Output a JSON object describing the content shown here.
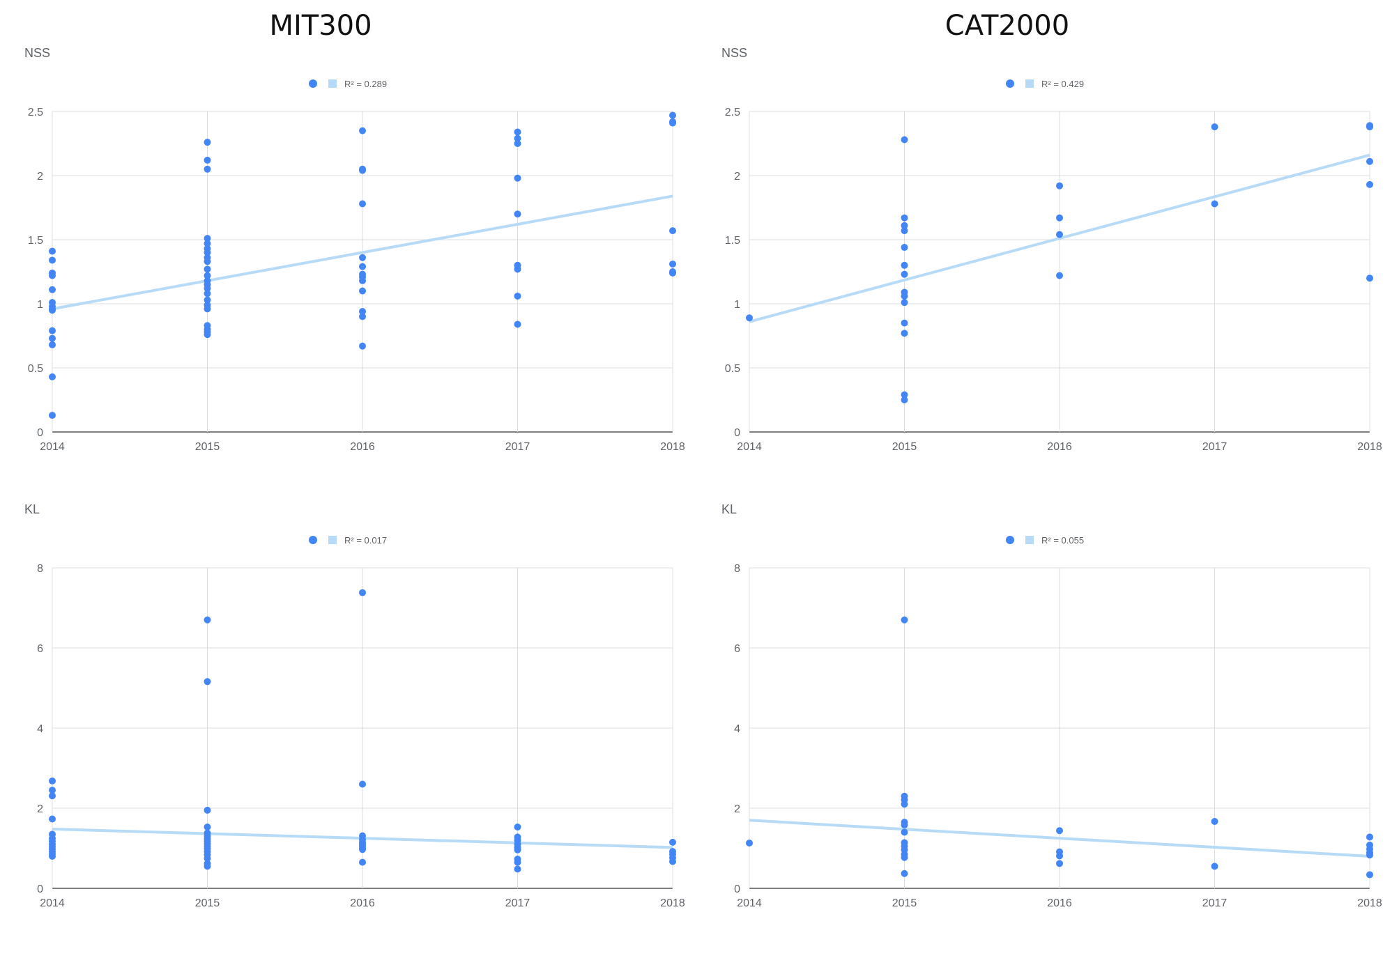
{
  "columns": [
    {
      "title": "MIT300"
    },
    {
      "title": "CAT2000"
    }
  ],
  "colors": {
    "point": "#4285f4",
    "trend": "#b7dbf7",
    "grid": "#dadce0",
    "axis": "#333333"
  },
  "chart_data": [
    {
      "type": "scatter",
      "dataset": "MIT300",
      "ylabel": "NSS",
      "legend": {
        "position": "top",
        "trend_label": "R² = 0.289"
      },
      "xlim": [
        2014,
        2018
      ],
      "ylim": [
        0,
        2.5
      ],
      "xticks": [
        2014,
        2015,
        2016,
        2017,
        2018
      ],
      "yticks": [
        "0",
        "0.5",
        "1",
        "1.5",
        "2",
        "2.5"
      ],
      "grid": true,
      "trendline": {
        "x": [
          2014,
          2018
        ],
        "y": [
          0.96,
          1.84
        ]
      },
      "points": [
        [
          2014,
          1.41
        ],
        [
          2014,
          1.34
        ],
        [
          2014,
          1.24
        ],
        [
          2014,
          1.22
        ],
        [
          2014,
          1.11
        ],
        [
          2014,
          1.01
        ],
        [
          2014,
          0.98
        ],
        [
          2014,
          0.96
        ],
        [
          2014,
          0.95
        ],
        [
          2014,
          0.79
        ],
        [
          2014,
          0.73
        ],
        [
          2014,
          0.68
        ],
        [
          2014,
          0.43
        ],
        [
          2014,
          0.13
        ],
        [
          2015,
          2.26
        ],
        [
          2015,
          2.12
        ],
        [
          2015,
          2.05
        ],
        [
          2015,
          1.51
        ],
        [
          2015,
          1.47
        ],
        [
          2015,
          1.43
        ],
        [
          2015,
          1.4
        ],
        [
          2015,
          1.36
        ],
        [
          2015,
          1.33
        ],
        [
          2015,
          1.27
        ],
        [
          2015,
          1.22
        ],
        [
          2015,
          1.18
        ],
        [
          2015,
          1.15
        ],
        [
          2015,
          1.12
        ],
        [
          2015,
          1.08
        ],
        [
          2015,
          1.03
        ],
        [
          2015,
          0.99
        ],
        [
          2015,
          0.96
        ],
        [
          2015,
          0.83
        ],
        [
          2015,
          0.8
        ],
        [
          2015,
          0.78
        ],
        [
          2015,
          0.76
        ],
        [
          2016,
          2.35
        ],
        [
          2016,
          2.05
        ],
        [
          2016,
          2.04
        ],
        [
          2016,
          1.78
        ],
        [
          2016,
          1.36
        ],
        [
          2016,
          1.29
        ],
        [
          2016,
          1.23
        ],
        [
          2016,
          1.21
        ],
        [
          2016,
          1.18
        ],
        [
          2016,
          1.1
        ],
        [
          2016,
          0.94
        ],
        [
          2016,
          0.9
        ],
        [
          2016,
          0.67
        ],
        [
          2017,
          2.34
        ],
        [
          2017,
          2.29
        ],
        [
          2017,
          2.25
        ],
        [
          2017,
          1.98
        ],
        [
          2017,
          1.7
        ],
        [
          2017,
          1.3
        ],
        [
          2017,
          1.27
        ],
        [
          2017,
          1.06
        ],
        [
          2017,
          0.84
        ],
        [
          2018,
          2.47
        ],
        [
          2018,
          2.42
        ],
        [
          2018,
          2.41
        ],
        [
          2018,
          1.57
        ],
        [
          2018,
          1.31
        ],
        [
          2018,
          1.25
        ],
        [
          2018,
          1.24
        ]
      ]
    },
    {
      "type": "scatter",
      "dataset": "CAT2000",
      "ylabel": "NSS",
      "legend": {
        "position": "top",
        "trend_label": "R² = 0.429"
      },
      "xlim": [
        2014,
        2018
      ],
      "ylim": [
        0,
        2.5
      ],
      "xticks": [
        2014,
        2015,
        2016,
        2017,
        2018
      ],
      "yticks": [
        "0",
        "0.5",
        "1",
        "1.5",
        "2",
        "2.5"
      ],
      "grid": true,
      "trendline": {
        "x": [
          2014,
          2018
        ],
        "y": [
          0.86,
          2.16
        ]
      },
      "points": [
        [
          2014,
          0.89
        ],
        [
          2015,
          2.28
        ],
        [
          2015,
          1.67
        ],
        [
          2015,
          1.61
        ],
        [
          2015,
          1.57
        ],
        [
          2015,
          1.44
        ],
        [
          2015,
          1.3
        ],
        [
          2015,
          1.23
        ],
        [
          2015,
          1.09
        ],
        [
          2015,
          1.06
        ],
        [
          2015,
          1.01
        ],
        [
          2015,
          0.85
        ],
        [
          2015,
          0.77
        ],
        [
          2015,
          0.29
        ],
        [
          2015,
          0.25
        ],
        [
          2016,
          1.92
        ],
        [
          2016,
          1.67
        ],
        [
          2016,
          1.54
        ],
        [
          2016,
          1.22
        ],
        [
          2017,
          2.38
        ],
        [
          2017,
          1.78
        ],
        [
          2018,
          2.39
        ],
        [
          2018,
          2.38
        ],
        [
          2018,
          2.11
        ],
        [
          2018,
          1.93
        ],
        [
          2018,
          1.2
        ]
      ]
    },
    {
      "type": "scatter",
      "dataset": "MIT300",
      "ylabel": "KL",
      "legend": {
        "position": "top",
        "trend_label": "R² = 0.017"
      },
      "xlim": [
        2014,
        2018
      ],
      "ylim": [
        0,
        8
      ],
      "xticks": [
        2014,
        2015,
        2016,
        2017,
        2018
      ],
      "yticks": [
        "0",
        "2",
        "4",
        "6",
        "8"
      ],
      "grid": true,
      "trendline": {
        "x": [
          2014,
          2018
        ],
        "y": [
          1.48,
          1.02
        ]
      },
      "points": [
        [
          2014,
          2.68
        ],
        [
          2014,
          2.45
        ],
        [
          2014,
          2.31
        ],
        [
          2014,
          1.73
        ],
        [
          2014,
          1.35
        ],
        [
          2014,
          1.25
        ],
        [
          2014,
          1.18
        ],
        [
          2014,
          1.1
        ],
        [
          2014,
          1.04
        ],
        [
          2014,
          0.98
        ],
        [
          2014,
          0.92
        ],
        [
          2014,
          0.86
        ],
        [
          2014,
          0.8
        ],
        [
          2015,
          6.7
        ],
        [
          2015,
          5.16
        ],
        [
          2015,
          1.95
        ],
        [
          2015,
          1.53
        ],
        [
          2015,
          1.38
        ],
        [
          2015,
          1.3
        ],
        [
          2015,
          1.23
        ],
        [
          2015,
          1.17
        ],
        [
          2015,
          1.11
        ],
        [
          2015,
          1.05
        ],
        [
          2015,
          0.99
        ],
        [
          2015,
          0.92
        ],
        [
          2015,
          0.84
        ],
        [
          2015,
          0.75
        ],
        [
          2015,
          0.62
        ],
        [
          2015,
          0.55
        ],
        [
          2016,
          7.38
        ],
        [
          2016,
          2.6
        ],
        [
          2016,
          1.31
        ],
        [
          2016,
          1.22
        ],
        [
          2016,
          1.15
        ],
        [
          2016,
          1.1
        ],
        [
          2016,
          1.06
        ],
        [
          2016,
          1.01
        ],
        [
          2016,
          0.97
        ],
        [
          2016,
          0.65
        ],
        [
          2017,
          1.53
        ],
        [
          2017,
          1.28
        ],
        [
          2017,
          1.2
        ],
        [
          2017,
          1.1
        ],
        [
          2017,
          1.02
        ],
        [
          2017,
          0.96
        ],
        [
          2017,
          0.73
        ],
        [
          2017,
          0.65
        ],
        [
          2017,
          0.48
        ],
        [
          2018,
          1.15
        ],
        [
          2018,
          0.92
        ],
        [
          2018,
          0.85
        ],
        [
          2018,
          0.76
        ],
        [
          2018,
          0.67
        ]
      ]
    },
    {
      "type": "scatter",
      "dataset": "CAT2000",
      "ylabel": "KL",
      "legend": {
        "position": "top",
        "trend_label": "R² = 0.055"
      },
      "xlim": [
        2014,
        2018
      ],
      "ylim": [
        0,
        8
      ],
      "xticks": [
        2014,
        2015,
        2016,
        2017,
        2018
      ],
      "yticks": [
        "0",
        "2",
        "4",
        "6",
        "8"
      ],
      "grid": true,
      "trendline": {
        "x": [
          2014,
          2018
        ],
        "y": [
          1.7,
          0.8
        ]
      },
      "points": [
        [
          2014,
          1.13
        ],
        [
          2015,
          6.7
        ],
        [
          2015,
          2.3
        ],
        [
          2015,
          2.21
        ],
        [
          2015,
          2.1
        ],
        [
          2015,
          1.65
        ],
        [
          2015,
          1.58
        ],
        [
          2015,
          1.4
        ],
        [
          2015,
          1.14
        ],
        [
          2015,
          1.05
        ],
        [
          2015,
          0.96
        ],
        [
          2015,
          0.85
        ],
        [
          2015,
          0.77
        ],
        [
          2015,
          0.37
        ],
        [
          2016,
          1.44
        ],
        [
          2016,
          0.91
        ],
        [
          2016,
          0.81
        ],
        [
          2016,
          0.62
        ],
        [
          2017,
          1.67
        ],
        [
          2017,
          0.55
        ],
        [
          2018,
          1.28
        ],
        [
          2018,
          1.08
        ],
        [
          2018,
          0.98
        ],
        [
          2018,
          0.89
        ],
        [
          2018,
          0.83
        ],
        [
          2018,
          0.34
        ]
      ]
    }
  ]
}
